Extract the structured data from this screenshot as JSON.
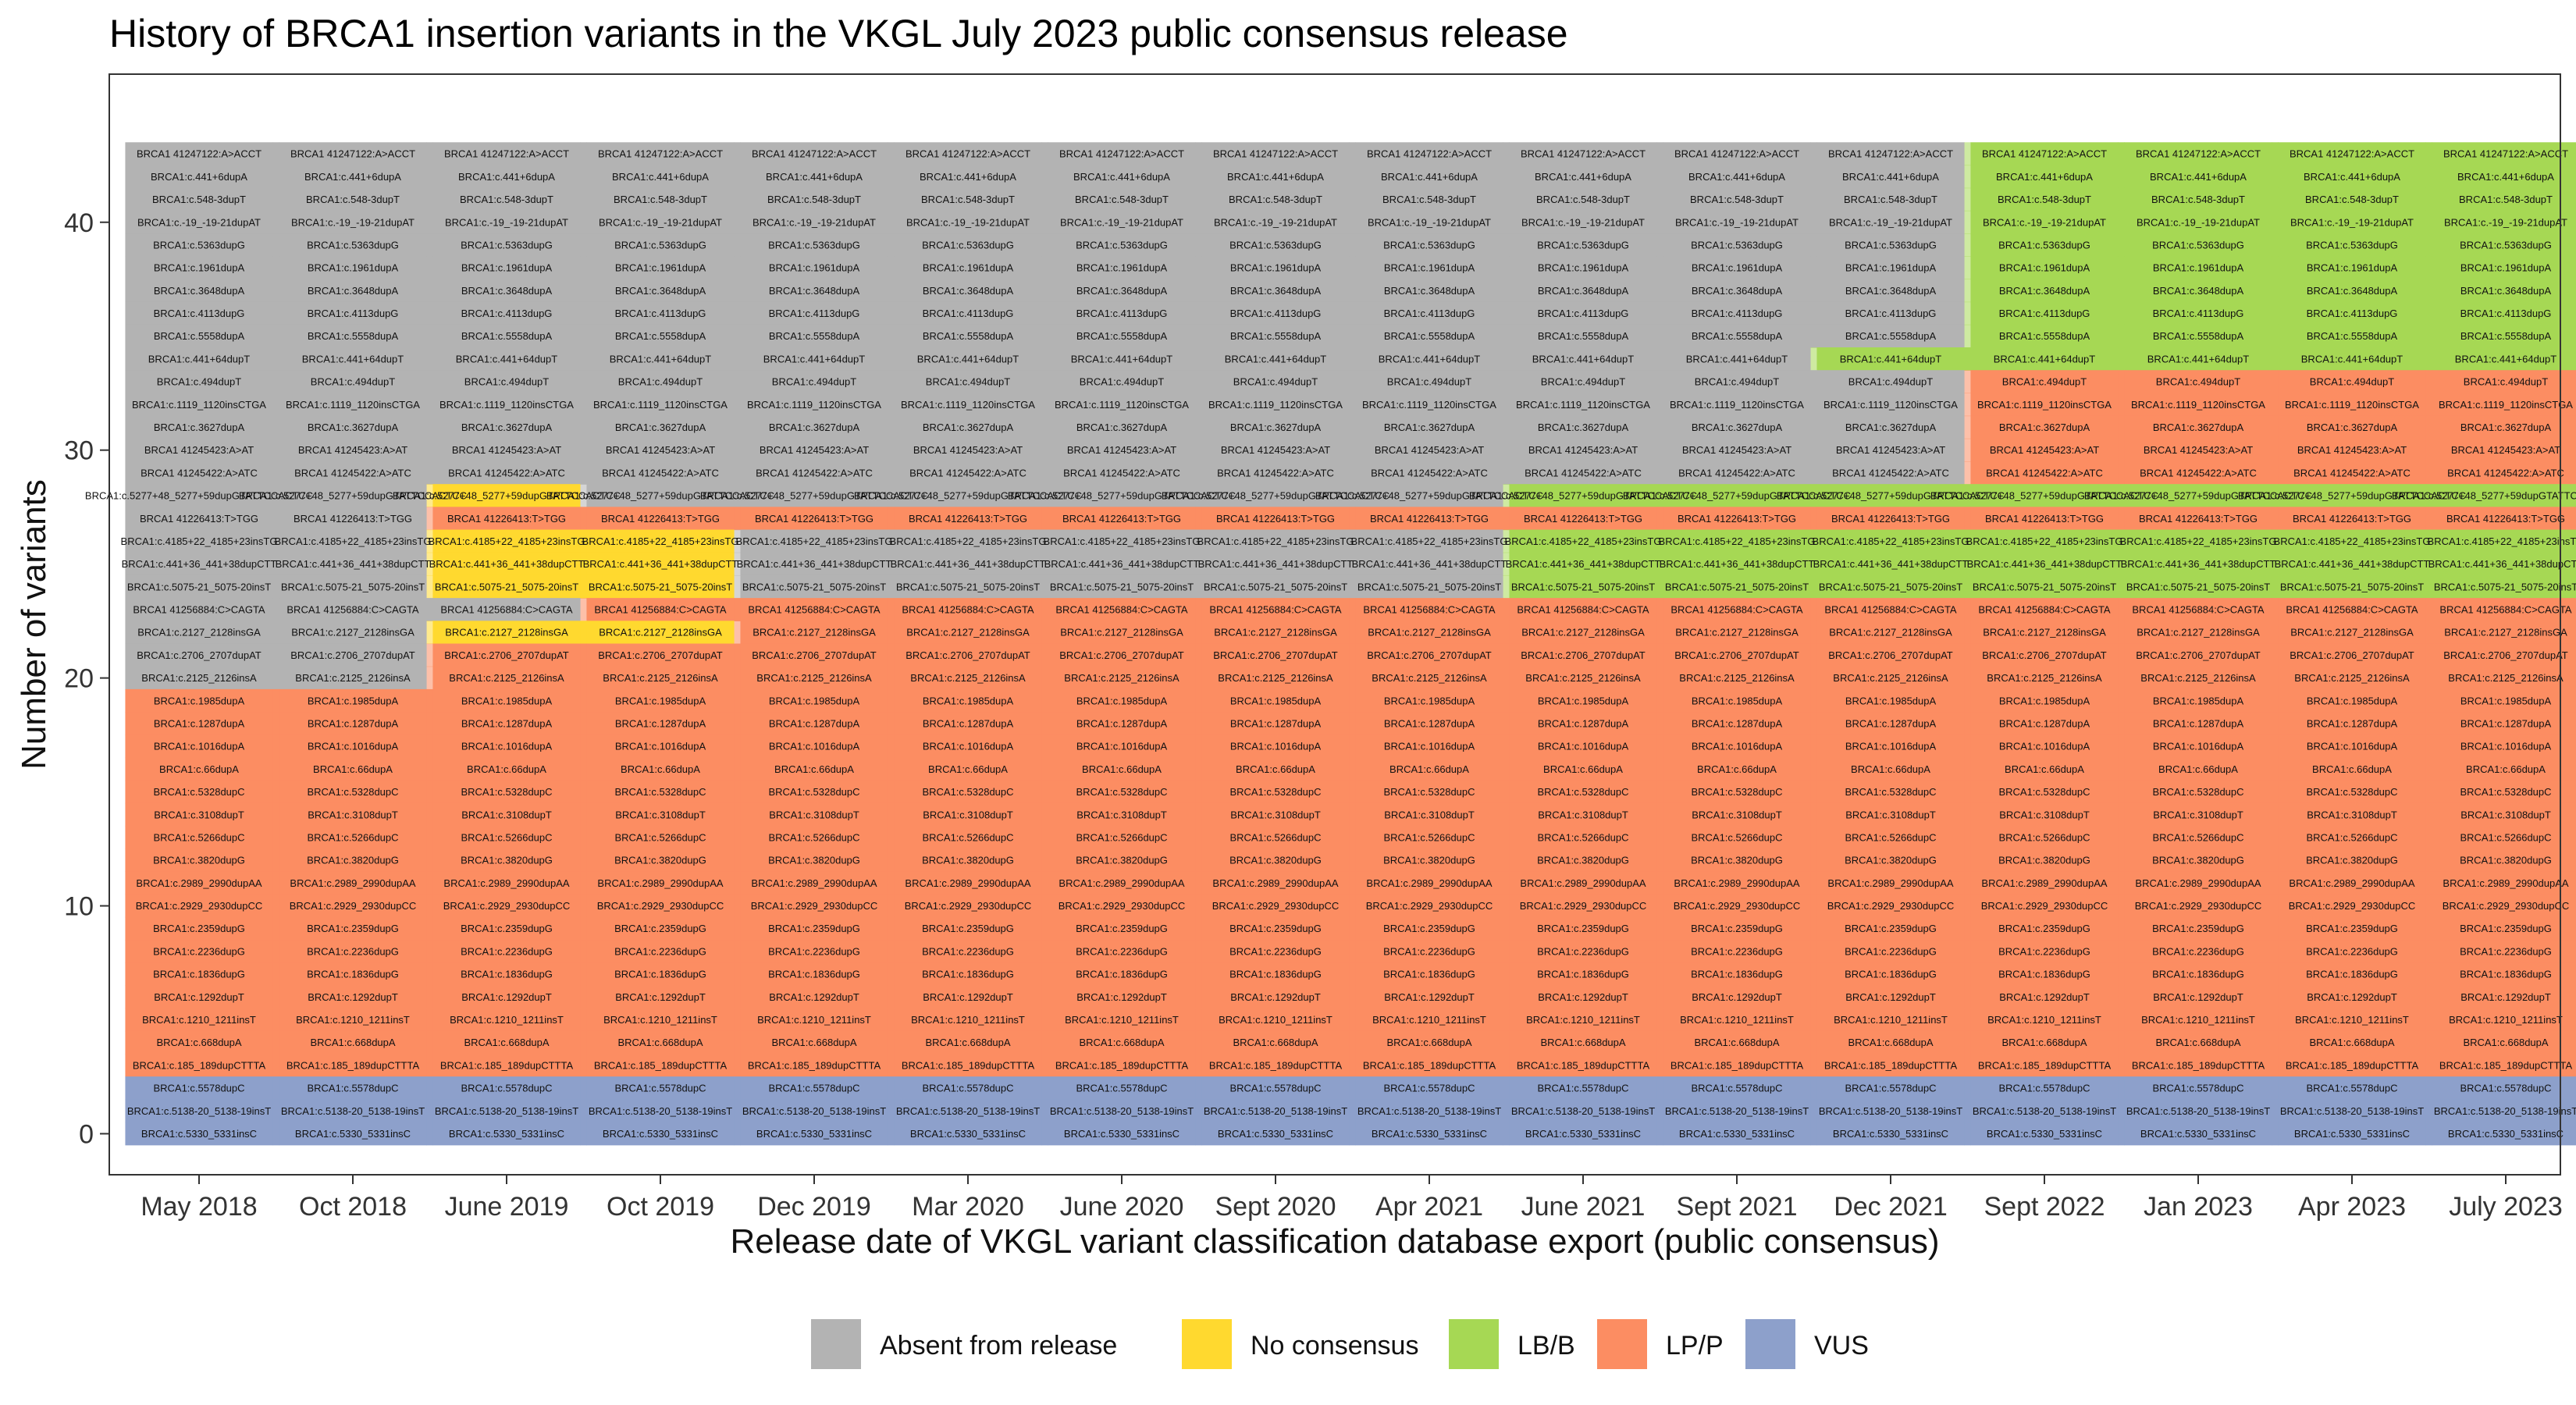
{
  "chart_data": {
    "type": "alluvial",
    "title": "History of BRCA1 insertion variants in the VKGL July 2023 public consensus release",
    "xlabel": "Release date of VKGL variant classification database export (public consensus)",
    "ylabel": "Number of variants",
    "releases": [
      "May 2018",
      "Oct 2018",
      "June 2019",
      "Oct 2019",
      "Dec 2019",
      "Mar 2020",
      "June 2020",
      "Sept 2020",
      "Apr 2021",
      "June 2021",
      "Sept 2021",
      "Dec 2021",
      "Sept 2022",
      "Jan 2023",
      "Apr 2023",
      "July 2023"
    ],
    "yticks": [
      0,
      10,
      20,
      30,
      40
    ],
    "ylim": [
      -1.8,
      46.5
    ],
    "grid": false,
    "legend_position": "bottom",
    "legend": [
      {
        "key": "absent",
        "label": "Absent from release",
        "color": "#b3b3b3"
      },
      {
        "key": "no_consensus",
        "label": "No consensus",
        "color": "#ffd92f"
      },
      {
        "key": "lbb",
        "label": "LB/B",
        "color": "#a6d854"
      },
      {
        "key": "lpp",
        "label": "LP/P",
        "color": "#fc8d62"
      },
      {
        "key": "vus",
        "label": "VUS",
        "color": "#8da0cb"
      }
    ],
    "variants": [
      "BRCA1 41247122:A>ACCT",
      "BRCA1:c.441+6dupA",
      "BRCA1:c.548-3dupT",
      "BRCA1:c.-19_-19-21dupAT",
      "BRCA1:c.5363dupG",
      "BRCA1:c.1961dupA",
      "BRCA1:c.3648dupA",
      "BRCA1:c.4113dupG",
      "BRCA1:c.5558dupA",
      "BRCA1:c.441+64dupT",
      "BRCA1:c.494dupT",
      "BRCA1:c.1119_1120insCTGA",
      "BRCA1:c.3627dupA",
      "BRCA1 41245423:A>AT",
      "BRCA1 41245422:A>ATC",
      "BRCA1:c.5277+48_5277+59dupGTATTCCACTCC",
      "BRCA1 41226413:T>TGG",
      "BRCA1:c.4185+22_4185+23insTG",
      "BRCA1:c.441+36_441+38dupCTT",
      "BRCA1:c.5075-21_5075-20insT",
      "BRCA1 41256884:C>CAGTA",
      "BRCA1:c.2127_2128insGA",
      "BRCA1:c.2706_2707dupAT",
      "BRCA1:c.2125_2126insA",
      "BRCA1:c.1985dupA",
      "BRCA1:c.1287dupA",
      "BRCA1:c.1016dupA",
      "BRCA1:c.66dupA",
      "BRCA1:c.5328dupC",
      "BRCA1:c.3108dupT",
      "BRCA1:c.5266dupC",
      "BRCA1:c.3820dupG",
      "BRCA1:c.2989_2990dupAA",
      "BRCA1:c.2929_2930dupCC",
      "BRCA1:c.2359dupG",
      "BRCA1:c.2236dupG",
      "BRCA1:c.1836dupG",
      "BRCA1:c.1292dupT",
      "BRCA1:c.1210_1211insT",
      "BRCA1:c.668dupA",
      "BRCA1:c.185_189dupCTTTA",
      "BRCA1:c.5578dupC",
      "BRCA1:c.5138-20_5138-19insT",
      "BRCA1:c.5330_5331insC"
    ],
    "status_runs": [
      [
        "absent",
        12,
        "lbb",
        4
      ],
      [
        "absent",
        12,
        "lbb",
        4
      ],
      [
        "absent",
        12,
        "lbb",
        4
      ],
      [
        "absent",
        12,
        "lbb",
        4
      ],
      [
        "absent",
        12,
        "lbb",
        4
      ],
      [
        "absent",
        12,
        "lbb",
        4
      ],
      [
        "absent",
        12,
        "lbb",
        4
      ],
      [
        "absent",
        12,
        "lbb",
        4
      ],
      [
        "absent",
        12,
        "lbb",
        4
      ],
      [
        "absent",
        11,
        "lbb",
        5
      ],
      [
        "absent",
        12,
        "lpp",
        4
      ],
      [
        "absent",
        12,
        "lpp",
        4
      ],
      [
        "absent",
        12,
        "lpp",
        4
      ],
      [
        "absent",
        12,
        "lpp",
        4
      ],
      [
        "absent",
        12,
        "lpp",
        4
      ],
      [
        "absent",
        2,
        "no_consensus",
        1,
        "absent",
        6,
        "lbb",
        7
      ],
      [
        "absent",
        2,
        "lpp",
        14
      ],
      [
        "absent",
        2,
        "no_consensus",
        2,
        "absent",
        5,
        "lbb",
        7
      ],
      [
        "absent",
        2,
        "no_consensus",
        2,
        "absent",
        5,
        "lbb",
        7
      ],
      [
        "absent",
        2,
        "no_consensus",
        2,
        "absent",
        5,
        "lbb",
        7
      ],
      [
        "absent",
        3,
        "lpp",
        13
      ],
      [
        "absent",
        2,
        "no_consensus",
        2,
        "lpp",
        12
      ],
      [
        "absent",
        2,
        "lpp",
        14
      ],
      [
        "absent",
        2,
        "lpp",
        14
      ],
      [
        "lpp",
        16
      ],
      [
        "lpp",
        16
      ],
      [
        "lpp",
        16
      ],
      [
        "lpp",
        16
      ],
      [
        "lpp",
        16
      ],
      [
        "lpp",
        16
      ],
      [
        "lpp",
        16
      ],
      [
        "lpp",
        16
      ],
      [
        "lpp",
        16
      ],
      [
        "lpp",
        16
      ],
      [
        "lpp",
        16
      ],
      [
        "lpp",
        16
      ],
      [
        "lpp",
        16
      ],
      [
        "lpp",
        16
      ],
      [
        "lpp",
        16
      ],
      [
        "lpp",
        16
      ],
      [
        "lpp",
        16
      ],
      [
        "vus",
        16
      ],
      [
        "vus",
        16
      ],
      [
        "vus",
        16
      ]
    ]
  }
}
